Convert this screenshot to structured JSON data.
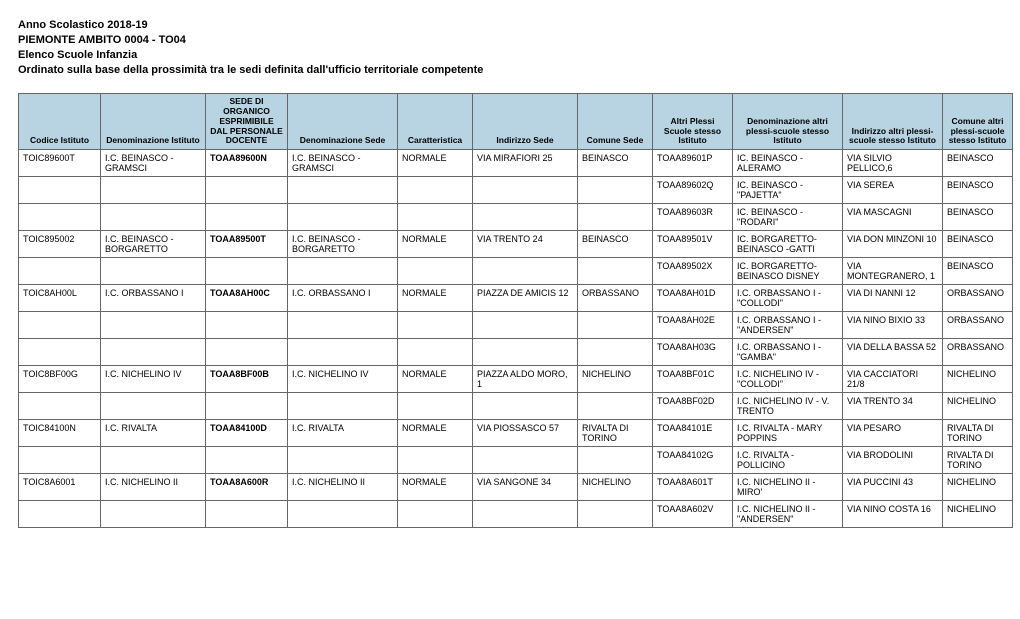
{
  "header": {
    "line1": "Anno Scolastico 2018-19",
    "line2": "PIEMONTE AMBITO 0004 - TO04",
    "line3": "Elenco Scuole Infanzia",
    "line4": "Ordinato sulla base della prossimità tra le sedi definita dall'ufficio territoriale competente"
  },
  "table": {
    "header_bg": "#b8d4e3",
    "columns": [
      "Codice Istituto",
      "Denominazione Istituto",
      "SEDE DI ORGANICO ESPRIMIBILE DAL PERSONALE DOCENTE",
      "Denominazione Sede",
      "Caratteristica",
      "Indirizzo Sede",
      "Comune Sede",
      "Altri Plessi Scuole stesso Istituto",
      "Denominazione altri plessi-scuole stesso Istituto",
      "Indirizzo altri plessi-scuole stesso Istituto",
      "Comune altri plessi-scuole stesso Istituto"
    ],
    "rows": [
      [
        "TOIC89600T",
        "I.C. BEINASCO - GRAMSCI",
        "TOAA89600N",
        "I.C. BEINASCO - GRAMSCI",
        "NORMALE",
        "VIA MIRAFIORI 25",
        "BEINASCO",
        "TOAA89601P",
        "IC. BEINASCO - ALERAMO",
        "VIA SILVIO PELLICO,6",
        "BEINASCO"
      ],
      [
        "",
        "",
        "",
        "",
        "",
        "",
        "",
        "TOAA89602Q",
        "IC. BEINASCO - \"PAJETTA\"",
        "VIA SEREA",
        "BEINASCO"
      ],
      [
        "",
        "",
        "",
        "",
        "",
        "",
        "",
        "TOAA89603R",
        "IC. BEINASCO - \"RODARI\"",
        "VIA MASCAGNI",
        "BEINASCO"
      ],
      [
        "TOIC895002",
        "I.C. BEINASCO - BORGARETTO",
        "TOAA89500T",
        "I.C. BEINASCO - BORGARETTO",
        "NORMALE",
        "VIA TRENTO 24",
        "BEINASCO",
        "TOAA89501V",
        "IC. BORGARETTO-BEINASCO -GATTI",
        "VIA DON MINZONI 10",
        "BEINASCO"
      ],
      [
        "",
        "",
        "",
        "",
        "",
        "",
        "",
        "TOAA89502X",
        "IC. BORGARETTO-BEINASCO DISNEY",
        "VIA MONTEGRANERO, 1",
        "BEINASCO"
      ],
      [
        "TOIC8AH00L",
        "I.C. ORBASSANO I",
        "TOAA8AH00C",
        "I.C. ORBASSANO I",
        "NORMALE",
        "PIAZZA DE AMICIS 12",
        "ORBASSANO",
        "TOAA8AH01D",
        "I.C. ORBASSANO I - \"COLLODI\"",
        "VIA DI NANNI 12",
        "ORBASSANO"
      ],
      [
        "",
        "",
        "",
        "",
        "",
        "",
        "",
        "TOAA8AH02E",
        "I.C. ORBASSANO I - \"ANDERSEN\"",
        "VIA NINO BIXIO 33",
        "ORBASSANO"
      ],
      [
        "",
        "",
        "",
        "",
        "",
        "",
        "",
        "TOAA8AH03G",
        "I.C. ORBASSANO I -\"GAMBA\"",
        "VIA DELLA BASSA 52",
        "ORBASSANO"
      ],
      [
        "TOIC8BF00G",
        "I.C. NICHELINO IV",
        "TOAA8BF00B",
        "I.C. NICHELINO IV",
        "NORMALE",
        "PIAZZA  ALDO MORO, 1",
        "NICHELINO",
        "TOAA8BF01C",
        "I.C. NICHELINO IV - \"COLLODI\"",
        "VIA CACCIATORI 21/8",
        "NICHELINO"
      ],
      [
        "",
        "",
        "",
        "",
        "",
        "",
        "",
        "TOAA8BF02D",
        "I.C. NICHELINO IV - V. TRENTO",
        "VIA TRENTO 34",
        "NICHELINO"
      ],
      [
        "TOIC84100N",
        "I.C. RIVALTA",
        "TOAA84100D",
        "I.C. RIVALTA",
        "NORMALE",
        "VIA PIOSSASCO  57",
        "RIVALTA DI TORINO",
        "TOAA84101E",
        "I.C. RIVALTA - MARY POPPINS",
        "VIA PESARO",
        "RIVALTA DI TORINO"
      ],
      [
        "",
        "",
        "",
        "",
        "",
        "",
        "",
        "TOAA84102G",
        "I.C. RIVALTA - POLLICINO",
        "VIA BRODOLINI",
        "RIVALTA DI TORINO"
      ],
      [
        "TOIC8A6001",
        "I.C. NICHELINO II",
        "TOAA8A600R",
        "I.C. NICHELINO II",
        "NORMALE",
        "VIA SANGONE 34",
        "NICHELINO",
        "TOAA8A601T",
        "I.C. NICHELINO II - MIRO'",
        "VIA PUCCINI 43",
        "NICHELINO"
      ],
      [
        "",
        "",
        "",
        "",
        "",
        "",
        "",
        "TOAA8A602V",
        "I.C. NICHELINO II -\"ANDERSEN\"",
        "VIA NINO COSTA  16",
        "NICHELINO"
      ]
    ],
    "bold_col_index": 2
  }
}
